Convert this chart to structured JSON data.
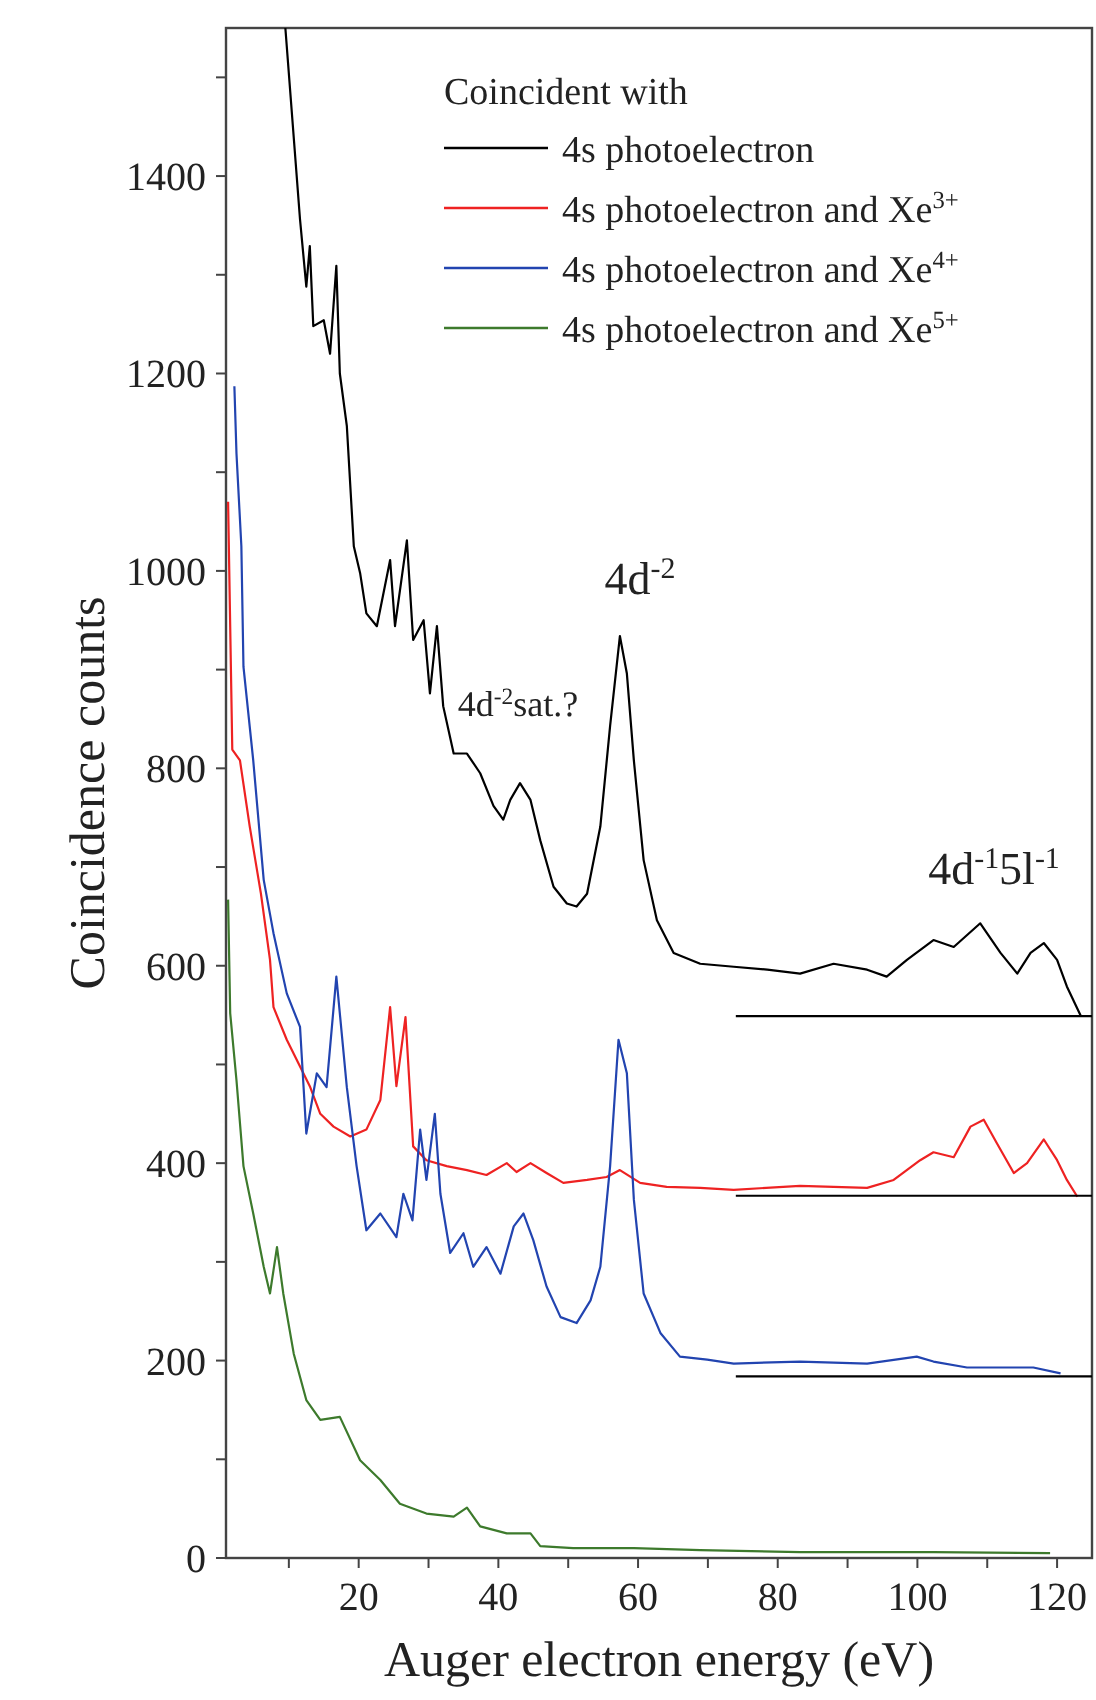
{
  "chart_data": {
    "type": "line",
    "xlabel": "Auger electron energy (eV)",
    "ylabel": "Coincidence counts",
    "legend_title": "Coincident with",
    "legend": "top right",
    "grid": false,
    "line_style": "solid",
    "xlim": [
      1,
      125
    ],
    "ylim": [
      0,
      1550
    ],
    "xticks": [
      {
        "value": 10,
        "label": null
      },
      20,
      {
        "value": 30,
        "label": null
      },
      40,
      {
        "value": 50,
        "label": null
      },
      60,
      {
        "value": 70,
        "label": null
      },
      80,
      {
        "value": 90,
        "label": null
      },
      100,
      {
        "value": 110,
        "label": null
      },
      120
    ],
    "yticks": [
      0,
      {
        "value": 100,
        "label": null
      },
      200,
      {
        "value": 300,
        "label": null
      },
      400,
      {
        "value": 500,
        "label": null
      },
      600,
      {
        "value": 700,
        "label": null
      },
      800,
      {
        "value": 900,
        "label": null
      },
      1000,
      {
        "value": 1100,
        "label": null
      },
      1200,
      {
        "value": 1300,
        "label": null
      },
      1400,
      {
        "value": 1500,
        "label": null
      }
    ],
    "series": [
      {
        "name": "4s photoelectron",
        "color": "#000000",
        "x": [
          9.5,
          11.6,
          12.5,
          13,
          13.5,
          15,
          15.9,
          16.8,
          17.3,
          18.3,
          19.3,
          20.2,
          21.1,
          22.6,
          24.5,
          25.2,
          26.9,
          27.8,
          29.3,
          30.2,
          31.2,
          32.1,
          33.6,
          35.5,
          37.4,
          39.3,
          40.7,
          41.7,
          43.1,
          44.6,
          46,
          47.9,
          49.8,
          51.2,
          52.7,
          54.6,
          56,
          57.4,
          58.4,
          59.4,
          60.8,
          62.7,
          65.1,
          68.9,
          73.7,
          78.5,
          83.2,
          88,
          92.8,
          95.6,
          98.5,
          102.3,
          105.2,
          109,
          111.9,
          114.3,
          116.2,
          118.1,
          120,
          121.4,
          123.4
        ],
        "values": [
          1550,
          1356,
          1288,
          1329,
          1248,
          1254,
          1220,
          1309,
          1200,
          1147,
          1025,
          998,
          957,
          944,
          1011,
          944,
          1031,
          930,
          950,
          876,
          944,
          863,
          815,
          815,
          795,
          762,
          748,
          768,
          785,
          768,
          727,
          680,
          663,
          660,
          673,
          741,
          843,
          934,
          896,
          808,
          707,
          646,
          613,
          602,
          599,
          596,
          592,
          602,
          596,
          589,
          606,
          626,
          619,
          643,
          613,
          592,
          613,
          623,
          606,
          579,
          549
        ]
      },
      {
        "name": "4s photoelectron and Xe$^{3+}$",
        "color": "#ee2222",
        "x": [
          1.3,
          1.9,
          3,
          4.4,
          6,
          7.3,
          7.8,
          9.7,
          11.6,
          13,
          14.5,
          16.4,
          18.8,
          21.1,
          23.1,
          24.5,
          25.4,
          26.7,
          27.8,
          29.7,
          32.6,
          35.5,
          38.3,
          41.2,
          42.6,
          44.6,
          46.9,
          49.3,
          52.7,
          55.5,
          57.4,
          60.3,
          64.1,
          68.9,
          73.7,
          83.2,
          92.8,
          96.6,
          100.4,
          102.3,
          105.2,
          107.6,
          109.5,
          111.4,
          113.8,
          115.7,
          118.1,
          120,
          121.4,
          122.9
        ],
        "values": [
          1070,
          819,
          808,
          741,
          673,
          606,
          558,
          525,
          498,
          478,
          450,
          437,
          427,
          434,
          464,
          558,
          478,
          548,
          417,
          403,
          397,
          393,
          388,
          400,
          391,
          400,
          390,
          380,
          383,
          386,
          393,
          380,
          376,
          375,
          373,
          377,
          375,
          383,
          403,
          411,
          406,
          437,
          444,
          420,
          390,
          400,
          424,
          403,
          383,
          366
        ]
      },
      {
        "name": "4s photoelectron and Xe$^{4+}$",
        "color": "#2244b0",
        "x": [
          2.2,
          2.5,
          3.2,
          3.5,
          4.9,
          6.4,
          7.8,
          9.7,
          11.6,
          12.5,
          14,
          15.4,
          16.8,
          18.3,
          19.7,
          21.1,
          23.1,
          25.4,
          26.4,
          27.7,
          28.8,
          29.7,
          30.9,
          31.7,
          33.1,
          35,
          36.4,
          38.3,
          40.3,
          42.2,
          43.6,
          45,
          46.9,
          48.9,
          51.2,
          53.2,
          54.6,
          56,
          57.2,
          58.4,
          59.4,
          60.8,
          63.2,
          66,
          69.9,
          73.7,
          83.2,
          92.8,
          99.9,
          102.3,
          107.1,
          116.6,
          120.5
        ],
        "values": [
          1187,
          1119,
          1025,
          903,
          808,
          687,
          633,
          572,
          538,
          430,
          491,
          477,
          589,
          477,
          397,
          332,
          349,
          325,
          369,
          342,
          434,
          383,
          450,
          369,
          309,
          329,
          295,
          315,
          288,
          336,
          349,
          322,
          275,
          244,
          238,
          261,
          295,
          397,
          525,
          491,
          363,
          268,
          228,
          204,
          201,
          197,
          199,
          197,
          204,
          199,
          193,
          193,
          187
        ]
      },
      {
        "name": "4s photoelectron and Xe$^{5+}$",
        "color": "#3d7a2c",
        "x": [
          1.3,
          1.6,
          2.5,
          3.5,
          4.9,
          6.4,
          7.3,
          8.3,
          9.2,
          10.7,
          12.5,
          14.5,
          17.3,
          20.2,
          23.1,
          25.9,
          29.7,
          33.6,
          35.5,
          37.4,
          41.2,
          44.6,
          46,
          50.7,
          59.4,
          68.9,
          83.2,
          102.3,
          119
        ],
        "values": [
          667,
          552,
          484,
          397,
          349,
          295,
          268,
          315,
          268,
          207,
          160,
          140,
          143,
          99,
          79,
          55,
          45,
          42,
          51,
          32,
          25,
          25,
          12,
          10,
          10,
          8,
          6,
          6,
          5
        ]
      },
      {
        "color": "#000000",
        "x": [
          74,
          125
        ],
        "values": [
          549,
          549
        ]
      },
      {
        "color": "#000000",
        "x": [
          74,
          125
        ],
        "values": [
          367,
          367
        ]
      },
      {
        "color": "#000000",
        "x": [
          74,
          125
        ],
        "values": [
          184,
          184
        ]
      }
    ],
    "annotations": [
      "4d$^{-2}$",
      "4d$^{-2}$sat.?",
      "4d$^{-1}$5l$^{-1}$"
    ]
  }
}
